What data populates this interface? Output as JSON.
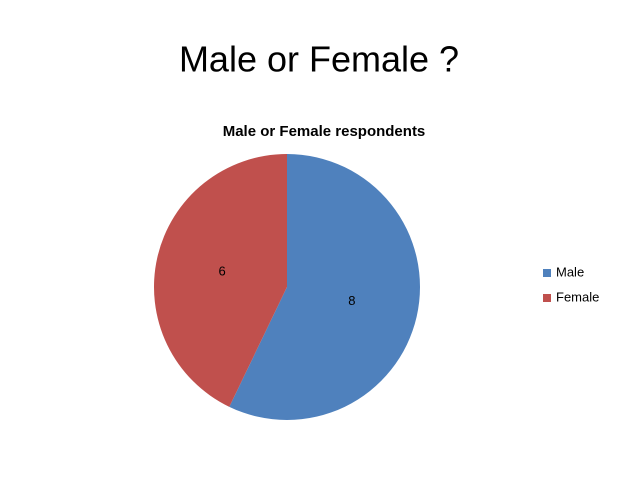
{
  "slide_title": "Male or Female ?",
  "chart_data": {
    "type": "pie",
    "title": "Male or Female respondents",
    "categories": [
      "Male",
      "Female"
    ],
    "values": [
      8,
      6
    ],
    "colors": [
      "#4f81bd",
      "#c0504d"
    ],
    "legend": "right"
  }
}
